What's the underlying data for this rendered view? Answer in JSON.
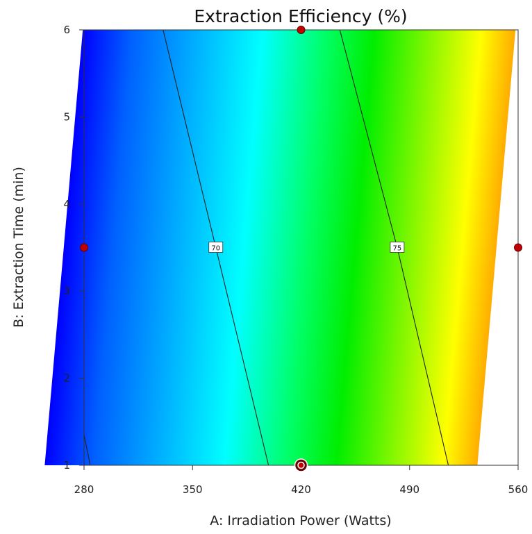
{
  "chart_data": {
    "type": "heatmap",
    "subtype": "contour",
    "title": "Extraction Efficiency (%)",
    "xlabel": "A: Irradiation Power (Watts)",
    "ylabel": "B: Extraction Time (min)",
    "xlim": [
      280,
      560
    ],
    "ylim": [
      1,
      6
    ],
    "xticks": [
      "280",
      "350",
      "420",
      "490",
      "560"
    ],
    "yticks": [
      "1",
      "2",
      "3",
      "4",
      "5",
      "6"
    ],
    "grid": false,
    "colormap": [
      "#0000ff",
      "#00ffff",
      "#00ff00",
      "#ffff00",
      "#ff0000"
    ],
    "contours": [
      {
        "label": "70",
        "points": [
          [
            331,
            6
          ],
          [
            365,
            3.5
          ],
          [
            399,
            1
          ]
        ]
      },
      {
        "label": "75",
        "points": [
          [
            445,
            6
          ],
          [
            482,
            3.5
          ],
          [
            515,
            1
          ]
        ]
      },
      {
        "label": "",
        "points": [
          [
            280,
            1.35
          ],
          [
            284,
            1
          ]
        ]
      }
    ],
    "design_points": [
      {
        "x": 420,
        "y": 6,
        "replicated": false
      },
      {
        "x": 280,
        "y": 3.5,
        "replicated": false
      },
      {
        "x": 560,
        "y": 3.5,
        "replicated": false
      },
      {
        "x": 420,
        "y": 1,
        "replicated": true
      }
    ],
    "colors": {
      "point_fill": "#c00000",
      "point_stroke": "#6b0000",
      "contour": "#222222"
    }
  }
}
